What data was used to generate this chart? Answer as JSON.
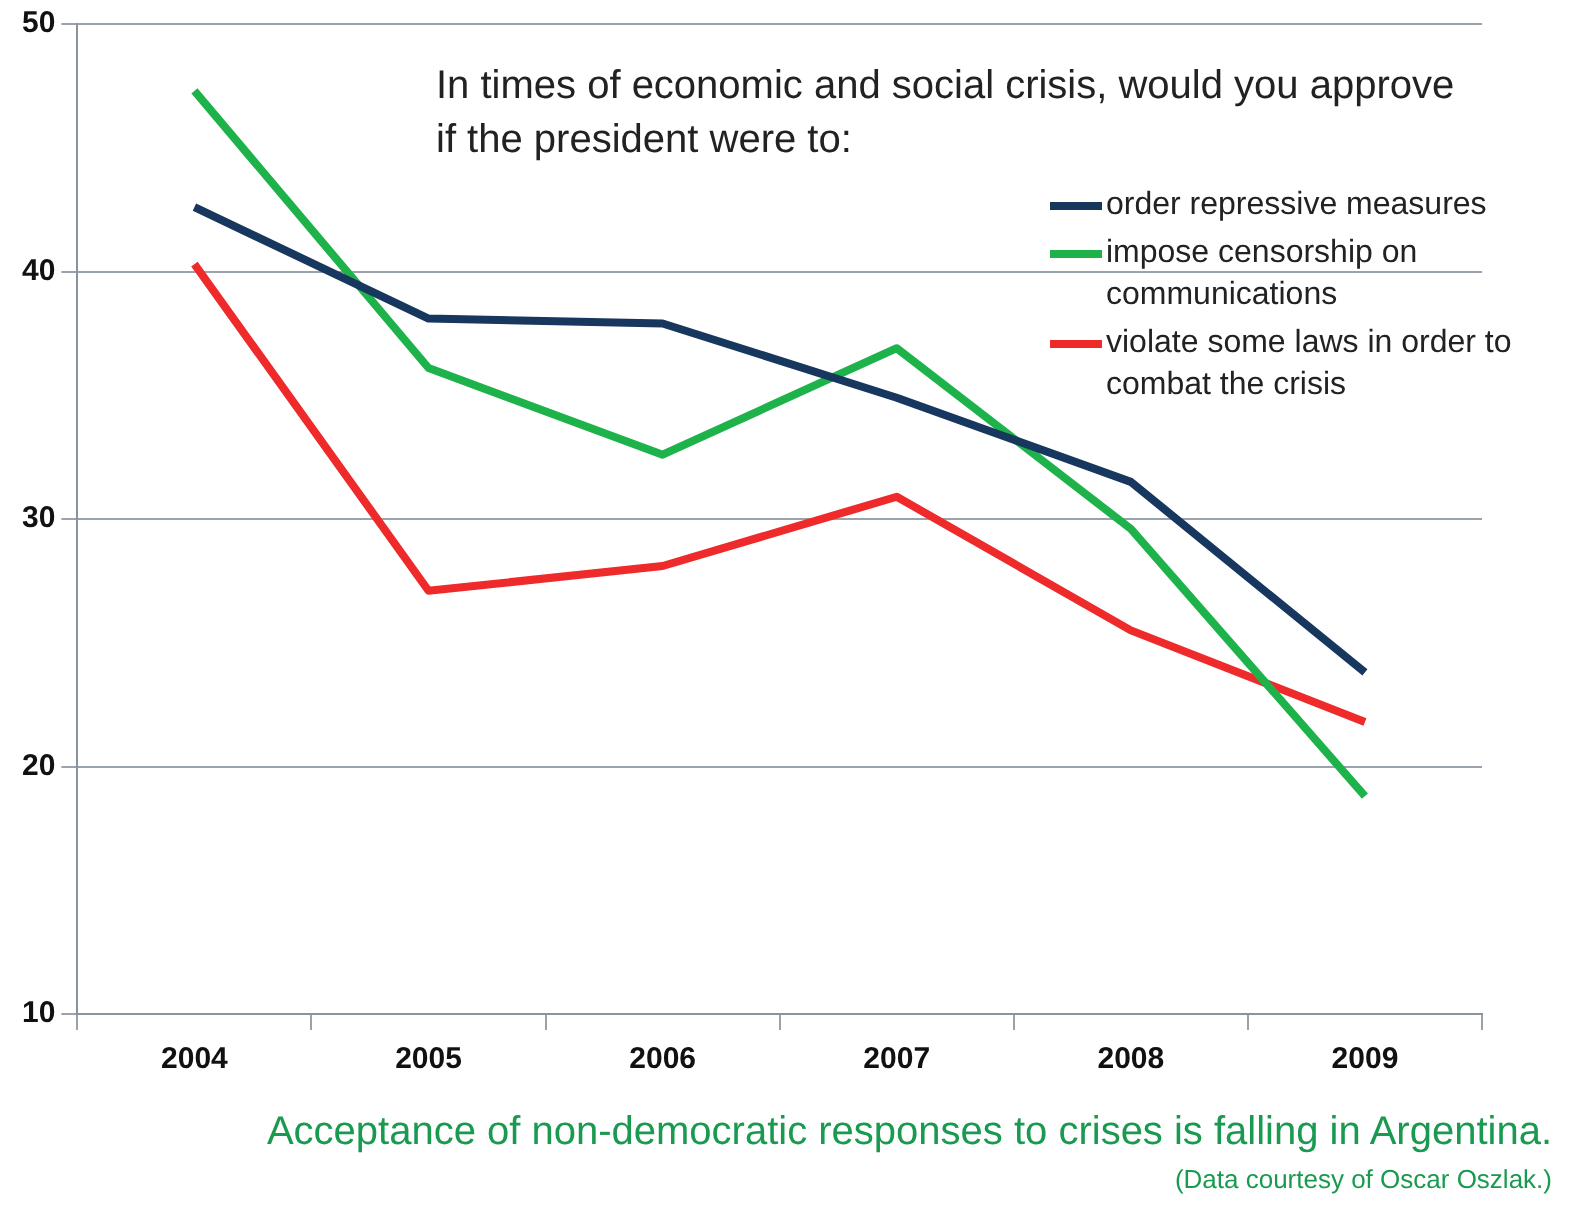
{
  "chart_data": {
    "type": "line",
    "title": "In times of economic and social crisis, would you approve if the president were to:",
    "categories": [
      "2004",
      "2005",
      "2006",
      "2007",
      "2008",
      "2009"
    ],
    "series": [
      {
        "name": "order repressive measures",
        "color": "#17375e",
        "values": [
          42.6,
          38.1,
          37.9,
          34.9,
          31.5,
          23.8
        ]
      },
      {
        "name": "impose censorship on communications",
        "color": "#1db34a",
        "values": [
          47.3,
          36.1,
          32.6,
          36.9,
          29.6,
          18.8
        ]
      },
      {
        "name": "violate some laws in order to combat the crisis",
        "color": "#ee2a2a",
        "values": [
          40.3,
          27.1,
          28.1,
          30.9,
          25.5,
          21.8
        ]
      }
    ],
    "ylim": [
      10,
      50
    ],
    "yticks": [
      10,
      20,
      30,
      40,
      50
    ],
    "grid": "y",
    "legend": "top right",
    "marker": "none",
    "annotations": [
      "Acceptance of non-democratic responses to crises is falling in Argentina.",
      "(Data courtesy of Oscar Oszlak.)"
    ]
  }
}
